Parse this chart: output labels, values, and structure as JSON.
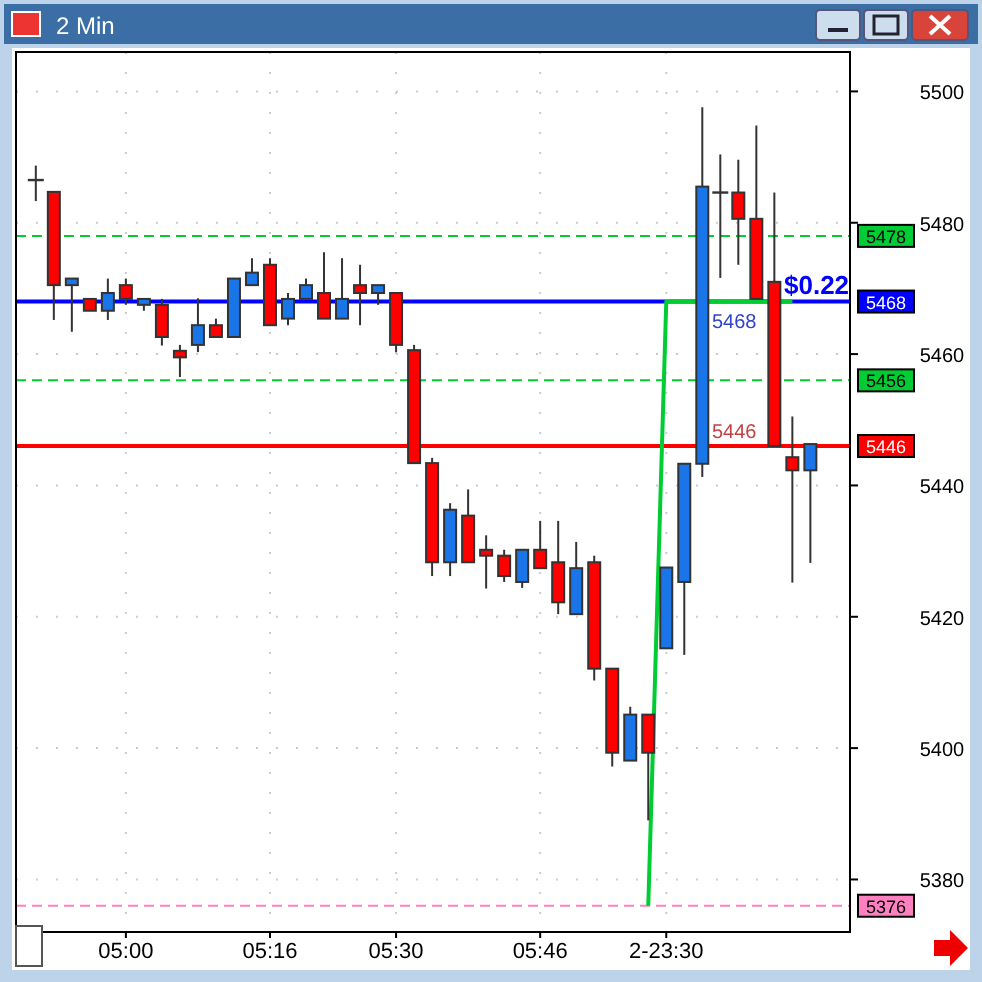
{
  "chart_data": {
    "type": "candlestick",
    "title": "2 Min",
    "categories": [
      null,
      null,
      null,
      null,
      null,
      "05:00",
      null,
      null,
      null,
      null,
      null,
      null,
      null,
      "05:16",
      null,
      null,
      null,
      null,
      null,
      null,
      "05:30",
      null,
      null,
      null,
      null,
      null,
      null,
      null,
      "05:46",
      null,
      null,
      null,
      null,
      null,
      null,
      "2-23:30",
      null,
      null,
      null,
      null,
      null,
      null,
      null,
      null
    ],
    "ohlc": [
      [
        5486.5,
        5488.7,
        5483.3,
        5486.5
      ],
      [
        5484.7,
        5484.7,
        5465.2,
        5470.5
      ],
      [
        5470.5,
        5471.5,
        5463.4,
        5471.5
      ],
      [
        5468.4,
        5468.4,
        5466.6,
        5466.6
      ],
      [
        5466.6,
        5471.5,
        5465.2,
        5469.3
      ],
      [
        5470.5,
        5471.5,
        5467.5,
        5468.4
      ],
      [
        5467.5,
        5468.4,
        5466.6,
        5468.4
      ],
      [
        5467.5,
        5468.4,
        5461.3,
        5462.6
      ],
      [
        5460.5,
        5461.4,
        5456.5,
        5459.5
      ],
      [
        5461.4,
        5468.5,
        5460.3,
        5464.4
      ],
      [
        5464.4,
        5465.4,
        5462.6,
        5462.6
      ],
      [
        5462.6,
        5471.5,
        5462.6,
        5471.5
      ],
      [
        5470.5,
        5474.6,
        5470.5,
        5472.4
      ],
      [
        5473.6,
        5474.6,
        5464.4,
        5464.4
      ],
      [
        5465.4,
        5469.3,
        5464.4,
        5468.4
      ],
      [
        5468.4,
        5471.5,
        5468.4,
        5470.5
      ],
      [
        5469.3,
        5475.5,
        5465.4,
        5465.4
      ],
      [
        5465.4,
        5474.6,
        5465.4,
        5468.4
      ],
      [
        5470.5,
        5473.6,
        5464.4,
        5469.3
      ],
      [
        5469.3,
        5470.5,
        5467.5,
        5470.5
      ],
      [
        5469.3,
        5469.3,
        5460.3,
        5461.4
      ],
      [
        5460.6,
        5461.4,
        5443.4,
        5443.4
      ],
      [
        5443.4,
        5444.2,
        5426.2,
        5428.3
      ],
      [
        5428.3,
        5437.3,
        5426.2,
        5436.3
      ],
      [
        5435.4,
        5439.4,
        5428.3,
        5428.3
      ],
      [
        5430.2,
        5432.4,
        5424.3,
        5429.3
      ],
      [
        5429.3,
        5430.2,
        5425.3,
        5426.2
      ],
      [
        5425.3,
        5430.2,
        5424.4,
        5430.2
      ],
      [
        5430.2,
        5434.6,
        5427.4,
        5427.4
      ],
      [
        5428.3,
        5434.6,
        5420.4,
        5422.2
      ],
      [
        5420.4,
        5431.4,
        5420.4,
        5427.4
      ],
      [
        5428.3,
        5429.3,
        5410.3,
        5412.1
      ],
      [
        5412.1,
        5412.1,
        5397.2,
        5399.3
      ],
      [
        5398.1,
        5406.3,
        5398.1,
        5405.1
      ],
      [
        5405.1,
        5405.1,
        5389,
        5399.3
      ],
      [
        5415.2,
        5427.5,
        5415.2,
        5427.5
      ],
      [
        5425.3,
        5443.3,
        5414.2,
        5443.3
      ],
      [
        5443.3,
        5497.6,
        5441.3,
        5485.5
      ],
      [
        5484.6,
        5490.4,
        5471.6,
        5484.6
      ],
      [
        5484.6,
        5489.6,
        5473.6,
        5480.6
      ],
      [
        5480.6,
        5494.8,
        5468.4,
        5468.4
      ],
      [
        5471,
        5484.6,
        5446,
        5446
      ],
      [
        5444.3,
        5450.5,
        5425.2,
        5442.3
      ],
      [
        5442.3,
        5446.3,
        5428.2,
        5446.3
      ]
    ],
    "colors": [
      "#333333",
      "#ff0000",
      "#1a75e8",
      "#ff0000",
      "#1a75e8",
      "#ff0000",
      "#1a75e8",
      "#ff0000",
      "#ff0000",
      "#1a75e8",
      "#ff0000",
      "#1a75e8",
      "#1a75e8",
      "#ff0000",
      "#1a75e8",
      "#1a75e8",
      "#ff0000",
      "#1a75e8",
      "#ff0000",
      "#1a75e8",
      "#ff0000",
      "#ff0000",
      "#ff0000",
      "#1a75e8",
      "#ff0000",
      "#ff0000",
      "#ff0000",
      "#1a75e8",
      "#ff0000",
      "#ff0000",
      "#1a75e8",
      "#ff0000",
      "#ff0000",
      "#1a75e8",
      "#ff0000",
      "#1a75e8",
      "#1a75e8",
      "#1a75e8",
      "#333333",
      "#ff0000",
      "#ff0000",
      "#ff0000",
      "#ff0000",
      "#1a75e8"
    ],
    "series": [
      {
        "type": "line",
        "color": "#00cc33",
        "values": [
          null,
          null,
          null,
          null,
          null,
          null,
          null,
          null,
          null,
          null,
          null,
          null,
          null,
          null,
          null,
          null,
          null,
          null,
          null,
          null,
          null,
          null,
          null,
          null,
          null,
          null,
          null,
          null,
          null,
          null,
          null,
          null,
          null,
          null,
          5376,
          5468,
          5468,
          5468,
          5468,
          5468,
          5468,
          5468,
          5468,
          null
        ]
      }
    ],
    "ylim": [
      5372,
      5506
    ],
    "yticks": [
      5380,
      5400,
      5420,
      5440,
      5460,
      5480,
      5500
    ],
    "grid": true,
    "ref_lines": [
      {
        "axis": "y",
        "value": 5478,
        "label": "5478",
        "color": "#00cc33",
        "line_style": "dashed"
      },
      {
        "axis": "y",
        "value": 5468,
        "label": "5468",
        "color": "#0000ff",
        "line_style": "solid"
      },
      {
        "axis": "y",
        "value": 5456,
        "label": "5456",
        "color": "#00cc33",
        "line_style": "dashed"
      },
      {
        "axis": "y",
        "value": 5446,
        "label": "5446",
        "color": "#ff0000",
        "line_style": "solid"
      },
      {
        "axis": "y",
        "value": 5376,
        "label": "5376",
        "color": "#ff80c0",
        "line_style": "dashed"
      }
    ],
    "annotations": [
      "$0.22",
      "5468",
      "5446"
    ]
  }
}
